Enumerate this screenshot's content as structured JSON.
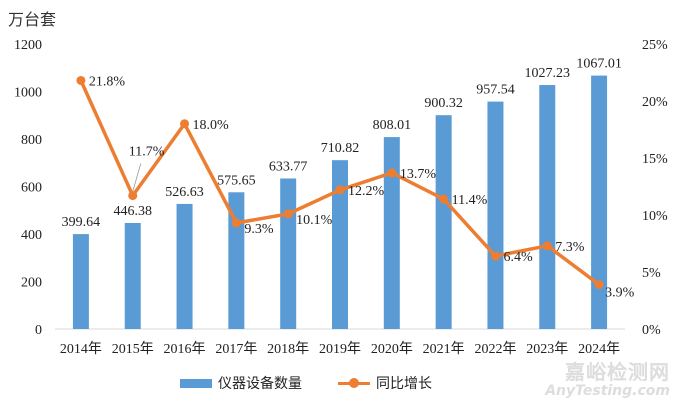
{
  "chart_data": {
    "type": "bar+line",
    "y_unit_label": "万台套",
    "categories": [
      "2014年",
      "2015年",
      "2016年",
      "2017年",
      "2018年",
      "2019年",
      "2020年",
      "2021年",
      "2022年",
      "2023年",
      "2024年"
    ],
    "series": [
      {
        "name": "仪器设备数量",
        "type": "bar",
        "axis": "left",
        "color": "#5b9bd5",
        "values": [
          399.64,
          446.38,
          526.63,
          575.65,
          633.77,
          710.82,
          808.01,
          900.32,
          957.54,
          1027.23,
          1067.01
        ],
        "labels": [
          "399.64",
          "446.38",
          "526.63",
          "575.65",
          "633.77",
          "710.82",
          "808.01",
          "900.32",
          "957.54",
          "1027.23",
          "1067.01"
        ]
      },
      {
        "name": "同比增长",
        "type": "line",
        "axis": "right",
        "color": "#ed7d31",
        "values": [
          21.8,
          11.7,
          18.0,
          9.3,
          10.1,
          12.2,
          13.7,
          11.4,
          6.4,
          7.3,
          3.9
        ],
        "labels": [
          "21.8%",
          "11.7%",
          "18.0%",
          "9.3%",
          "10.1%",
          "12.2%",
          "13.7%",
          "11.4%",
          "6.4%",
          "7.3%",
          "3.9%"
        ]
      }
    ],
    "left_axis": {
      "range": [
        0,
        1200
      ],
      "ticks": [
        "0",
        "200",
        "400",
        "600",
        "800",
        "1000",
        "1200"
      ]
    },
    "right_axis": {
      "range": [
        0,
        25
      ],
      "ticks": [
        "0%",
        "5%",
        "10%",
        "15%",
        "20%",
        "25%"
      ]
    },
    "grid": false,
    "legend_position": "bottom"
  },
  "watermark": {
    "line1": "嘉峪检测网",
    "line2": "AnyTesting.com"
  }
}
